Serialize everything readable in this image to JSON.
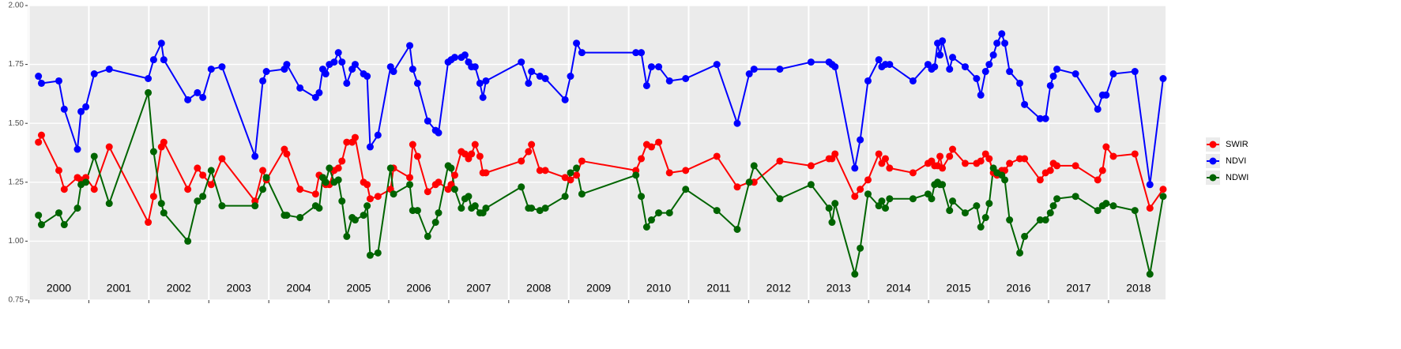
{
  "chart_data": {
    "type": "line",
    "x": [
      2000.16,
      2000.21,
      2000.5,
      2000.59,
      2000.81,
      2000.87,
      2000.95,
      2001.09,
      2001.34,
      2001.99,
      2002.08,
      2002.21,
      2002.25,
      2002.65,
      2002.81,
      2002.9,
      2003.04,
      2003.22,
      2003.77,
      2003.9,
      2003.96,
      2004.26,
      2004.3,
      2004.52,
      2004.78,
      2004.84,
      2004.9,
      2004.95,
      2005.01,
      2005.09,
      2005.16,
      2005.22,
      2005.3,
      2005.39,
      2005.44,
      2005.58,
      2005.64,
      2005.69,
      2005.82,
      2006.03,
      2006.08,
      2006.35,
      2006.4,
      2006.48,
      2006.65,
      2006.78,
      2006.83,
      2006.99,
      2007.04,
      2007.1,
      2007.21,
      2007.27,
      2007.33,
      2007.38,
      2007.44,
      2007.52,
      2007.57,
      2007.62,
      2008.21,
      2008.33,
      2008.38,
      2008.52,
      2008.61,
      2008.94,
      2009.03,
      2009.13,
      2009.22,
      2010.12,
      2010.21,
      2010.3,
      2010.38,
      2010.5,
      2010.68,
      2010.95,
      2011.47,
      2011.81,
      2012.01,
      2012.09,
      2012.52,
      2013.04,
      2013.34,
      2013.39,
      2013.44,
      2013.77,
      2013.86,
      2013.99,
      2014.17,
      2014.22,
      2014.28,
      2014.35,
      2014.74,
      2014.99,
      2015.05,
      2015.1,
      2015.15,
      2015.19,
      2015.23,
      2015.35,
      2015.4,
      2015.61,
      2015.8,
      2015.87,
      2015.95,
      2016.01,
      2016.08,
      2016.14,
      2016.22,
      2016.27,
      2016.35,
      2016.52,
      2016.6,
      2016.86,
      2016.95,
      2017.03,
      2017.08,
      2017.14,
      2017.45,
      2017.82,
      2017.9,
      2017.96,
      2018.08,
      2018.44,
      2018.69,
      2018.91
    ],
    "series": [
      {
        "name": "SWIR",
        "color": "#ff0000",
        "values": [
          1.42,
          1.45,
          1.3,
          1.22,
          1.27,
          1.26,
          1.27,
          1.22,
          1.4,
          1.08,
          1.19,
          1.4,
          1.42,
          1.22,
          1.31,
          1.28,
          1.24,
          1.35,
          1.17,
          1.3,
          1.26,
          1.39,
          1.37,
          1.22,
          1.2,
          1.28,
          1.27,
          1.24,
          1.24,
          1.3,
          1.31,
          1.34,
          1.42,
          1.42,
          1.44,
          1.25,
          1.24,
          1.18,
          1.19,
          1.22,
          1.31,
          1.27,
          1.41,
          1.36,
          1.21,
          1.24,
          1.25,
          1.22,
          1.24,
          1.28,
          1.38,
          1.37,
          1.35,
          1.37,
          1.41,
          1.36,
          1.29,
          1.29,
          1.34,
          1.38,
          1.41,
          1.3,
          1.3,
          1.27,
          1.26,
          1.28,
          1.34,
          1.3,
          1.35,
          1.41,
          1.4,
          1.42,
          1.29,
          1.3,
          1.36,
          1.23,
          1.25,
          1.25,
          1.34,
          1.32,
          1.35,
          1.35,
          1.37,
          1.19,
          1.22,
          1.26,
          1.37,
          1.33,
          1.35,
          1.31,
          1.29,
          1.33,
          1.34,
          1.32,
          1.32,
          1.36,
          1.31,
          1.36,
          1.39,
          1.33,
          1.33,
          1.34,
          1.37,
          1.35,
          1.29,
          1.28,
          1.3,
          1.3,
          1.33,
          1.35,
          1.35,
          1.26,
          1.29,
          1.3,
          1.33,
          1.32,
          1.32,
          1.26,
          1.3,
          1.4,
          1.36,
          1.37,
          1.14,
          1.22
        ]
      },
      {
        "name": "NDVI",
        "color": "#0000ff",
        "values": [
          1.7,
          1.67,
          1.68,
          1.56,
          1.39,
          1.55,
          1.57,
          1.71,
          1.73,
          1.69,
          1.77,
          1.84,
          1.77,
          1.6,
          1.63,
          1.61,
          1.73,
          1.74,
          1.36,
          1.68,
          1.72,
          1.73,
          1.75,
          1.65,
          1.61,
          1.63,
          1.73,
          1.71,
          1.75,
          1.76,
          1.8,
          1.76,
          1.67,
          1.73,
          1.75,
          1.71,
          1.7,
          1.4,
          1.45,
          1.74,
          1.72,
          1.83,
          1.73,
          1.67,
          1.51,
          1.47,
          1.46,
          1.76,
          1.77,
          1.78,
          1.78,
          1.79,
          1.76,
          1.74,
          1.74,
          1.67,
          1.61,
          1.68,
          1.76,
          1.67,
          1.72,
          1.7,
          1.69,
          1.6,
          1.7,
          1.84,
          1.8,
          1.8,
          1.8,
          1.66,
          1.74,
          1.74,
          1.68,
          1.69,
          1.75,
          1.5,
          1.71,
          1.73,
          1.73,
          1.76,
          1.76,
          1.75,
          1.74,
          1.31,
          1.43,
          1.68,
          1.77,
          1.74,
          1.75,
          1.75,
          1.68,
          1.75,
          1.73,
          1.74,
          1.84,
          1.79,
          1.85,
          1.73,
          1.78,
          1.74,
          1.69,
          1.62,
          1.72,
          1.75,
          1.79,
          1.84,
          1.88,
          1.84,
          1.72,
          1.67,
          1.58,
          1.52,
          1.52,
          1.66,
          1.7,
          1.73,
          1.71,
          1.56,
          1.62,
          1.62,
          1.71,
          1.72,
          1.24,
          1.69
        ]
      },
      {
        "name": "NDWI",
        "color": "#006400",
        "values": [
          1.11,
          1.07,
          1.12,
          1.07,
          1.14,
          1.24,
          1.25,
          1.36,
          1.16,
          1.63,
          1.38,
          1.16,
          1.12,
          1.0,
          1.17,
          1.19,
          1.3,
          1.15,
          1.15,
          1.22,
          1.27,
          1.11,
          1.11,
          1.1,
          1.15,
          1.14,
          1.27,
          1.25,
          1.31,
          1.25,
          1.26,
          1.17,
          1.02,
          1.1,
          1.09,
          1.11,
          1.15,
          0.94,
          0.95,
          1.31,
          1.2,
          1.24,
          1.13,
          1.13,
          1.02,
          1.08,
          1.12,
          1.32,
          1.31,
          1.22,
          1.14,
          1.18,
          1.19,
          1.14,
          1.15,
          1.12,
          1.12,
          1.14,
          1.23,
          1.14,
          1.14,
          1.13,
          1.14,
          1.19,
          1.29,
          1.31,
          1.2,
          1.28,
          1.19,
          1.06,
          1.09,
          1.12,
          1.12,
          1.22,
          1.13,
          1.05,
          1.25,
          1.32,
          1.18,
          1.24,
          1.14,
          1.08,
          1.16,
          0.86,
          0.97,
          1.2,
          1.15,
          1.17,
          1.14,
          1.18,
          1.18,
          1.2,
          1.18,
          1.24,
          1.25,
          1.24,
          1.24,
          1.13,
          1.17,
          1.12,
          1.15,
          1.06,
          1.1,
          1.16,
          1.31,
          1.29,
          1.28,
          1.26,
          1.09,
          0.95,
          1.02,
          1.09,
          1.09,
          1.12,
          1.15,
          1.18,
          1.19,
          1.13,
          1.15,
          1.16,
          1.15,
          1.13,
          0.86,
          1.19
        ]
      }
    ],
    "xlim": [
      1999.98,
      2018.95
    ],
    "xticks": [
      2000,
      2001,
      2002,
      2003,
      2004,
      2005,
      2006,
      2007,
      2008,
      2009,
      2010,
      2011,
      2012,
      2013,
      2014,
      2015,
      2016,
      2017,
      2018
    ],
    "year_labels": [
      "2000",
      "2001",
      "2002",
      "2003",
      "2004",
      "2005",
      "2006",
      "2007",
      "2008",
      "2009",
      "2010",
      "2011",
      "2012",
      "2013",
      "2014",
      "2015",
      "2016",
      "2017",
      "2018"
    ],
    "ylim": [
      0.75,
      2.0
    ],
    "yticks": [
      0.75,
      {
        "value": 1.0,
        "label": "1.00"
      },
      1.25,
      {
        "value": 1.5,
        "label": "1.50"
      },
      1.75,
      {
        "value": 2.0,
        "label": "2.00"
      }
    ],
    "grid": true,
    "legend": "right"
  }
}
